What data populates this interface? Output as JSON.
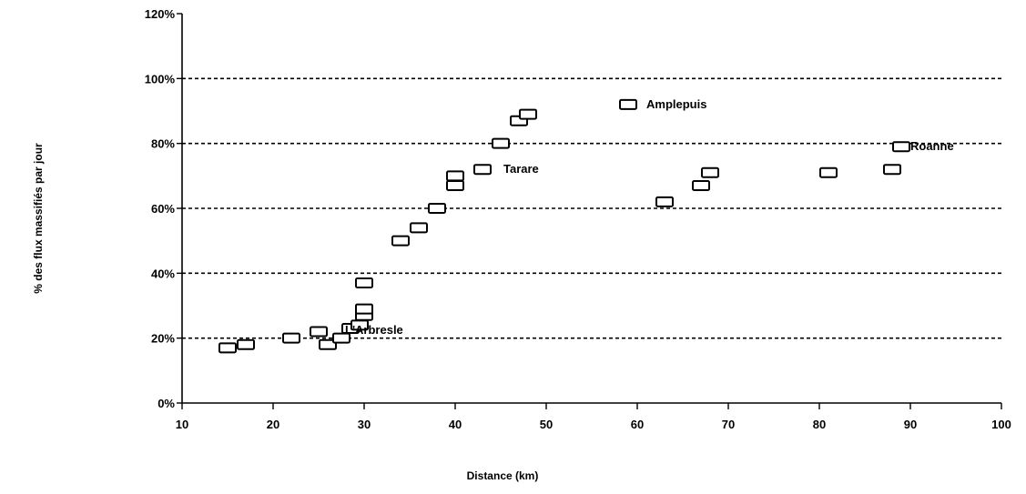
{
  "chart_data": {
    "type": "scatter",
    "title": "",
    "xlabel": "Distance (km)",
    "ylabel": "% des flux massifiés par jour",
    "xlim": [
      10,
      100
    ],
    "ylim": [
      0,
      120
    ],
    "x_ticks": [
      10,
      20,
      30,
      40,
      50,
      60,
      70,
      80,
      90,
      100
    ],
    "y_ticks": [
      0,
      20,
      40,
      60,
      80,
      100,
      120
    ],
    "x_tick_labels": [
      "10",
      "20",
      "30",
      "40",
      "50",
      "60",
      "70",
      "80",
      "90",
      "100"
    ],
    "y_tick_labels": [
      "0%",
      "20%",
      "40%",
      "60%",
      "80%",
      "100%",
      "120%"
    ],
    "grid": "horizontal dashed at 20%, 40%, 60%, 80%, 100%",
    "marker": "open rectangle",
    "points": [
      {
        "x": 15,
        "y": 17
      },
      {
        "x": 17,
        "y": 18
      },
      {
        "x": 22,
        "y": 20
      },
      {
        "x": 25,
        "y": 22
      },
      {
        "x": 26,
        "y": 18
      },
      {
        "x": 27.5,
        "y": 20
      },
      {
        "x": 28.5,
        "y": 23
      },
      {
        "x": 29.5,
        "y": 24
      },
      {
        "x": 30,
        "y": 27
      },
      {
        "x": 30,
        "y": 29
      },
      {
        "x": 30,
        "y": 37
      },
      {
        "x": 34,
        "y": 50
      },
      {
        "x": 36,
        "y": 54
      },
      {
        "x": 38,
        "y": 60
      },
      {
        "x": 40,
        "y": 67
      },
      {
        "x": 40,
        "y": 70
      },
      {
        "x": 43,
        "y": 72
      },
      {
        "x": 45,
        "y": 80
      },
      {
        "x": 47,
        "y": 87
      },
      {
        "x": 48,
        "y": 89
      },
      {
        "x": 59,
        "y": 92
      },
      {
        "x": 63,
        "y": 62
      },
      {
        "x": 67,
        "y": 67
      },
      {
        "x": 68,
        "y": 71
      },
      {
        "x": 81,
        "y": 71
      },
      {
        "x": 88,
        "y": 72
      },
      {
        "x": 89,
        "y": 79
      }
    ],
    "annotations": [
      {
        "text": "L'Arbresle",
        "x": 28.5,
        "y": 23
      },
      {
        "text": "Tarare",
        "x": 43,
        "y": 72
      },
      {
        "text": "Amplepuis",
        "x": 59,
        "y": 92
      },
      {
        "text": "Roanne",
        "x": 89,
        "y": 79
      }
    ]
  }
}
